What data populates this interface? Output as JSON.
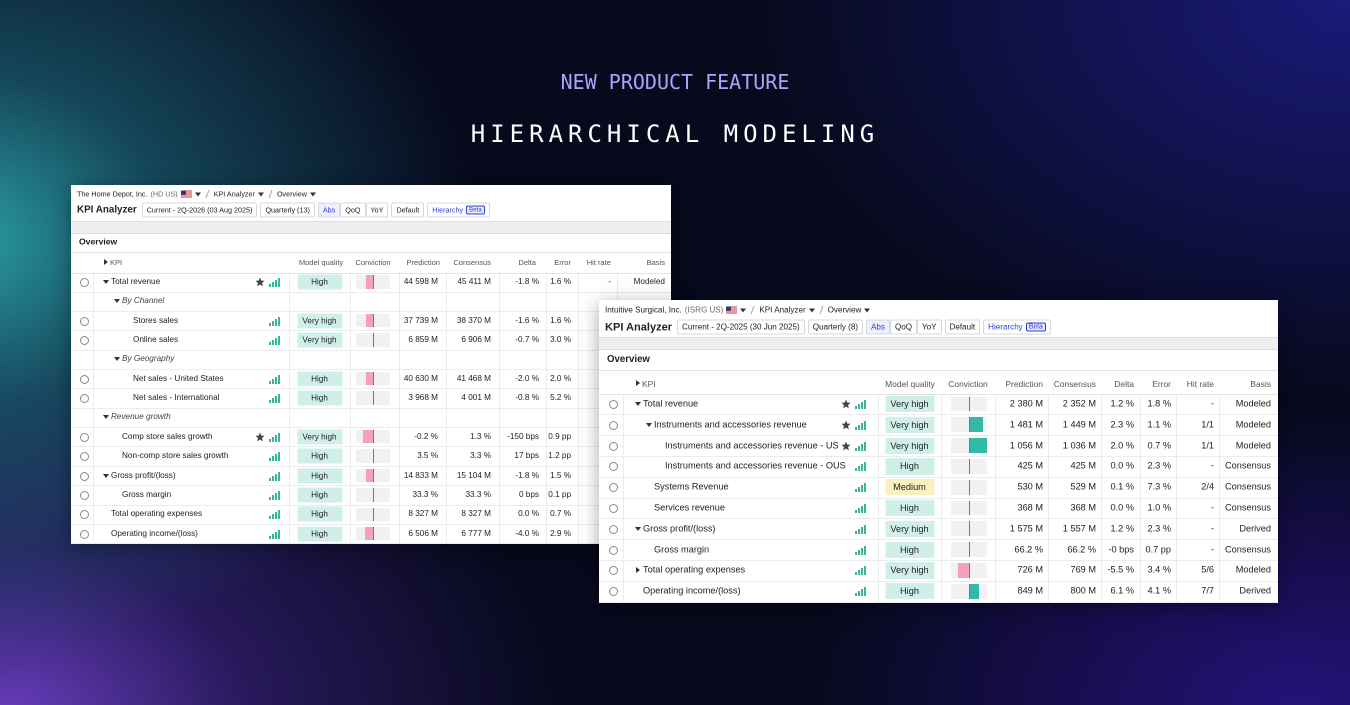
{
  "header": {
    "eyebrow": "NEW PRODUCT FEATURE",
    "title": "HIERARCHICAL MODELING"
  },
  "panels": [
    {
      "toolbar": {
        "company": "The Home Depot, Inc.",
        "ticker": "(HD US)",
        "view": "KPI Analyzer",
        "page": "Overview",
        "title": "KPI Analyzer",
        "period": "Current - 2Q-2026 (03 Aug 2025)",
        "frequency": "Quarterly (13)",
        "modes": [
          "Abs",
          "QoQ",
          "YoY"
        ],
        "active_mode": 0,
        "buttons": [
          "Default",
          "Hierarchy"
        ],
        "active_button": 1,
        "badge": "Beta"
      },
      "section": "Overview",
      "columns": [
        "KPI",
        "Model quality",
        "Conviction",
        "Prediction",
        "Consensus",
        "Delta",
        "Error",
        "Hit rate",
        "Basis"
      ],
      "rows": [
        {
          "label": "Total revenue",
          "star": true,
          "quality": "High",
          "conviction": -0.4,
          "prediction": "44 598 M",
          "consensus": "45 411 M",
          "delta": "-1.8 %",
          "error": "1.6 %",
          "hit_rate": "-",
          "basis": "Modeled",
          "children": [
            {
              "label": "By Channel",
              "group": true,
              "children": [
                {
                  "label": "Stores sales",
                  "quality": "Very high",
                  "conviction": -0.4,
                  "prediction": "37 739 M",
                  "consensus": "38 370 M",
                  "delta": "-1.6 %",
                  "error": "1.6 %"
                },
                {
                  "label": "Online sales",
                  "quality": "Very high",
                  "conviction": 0,
                  "prediction": "6 859 M",
                  "consensus": "6 906 M",
                  "delta": "-0.7 %",
                  "error": "3.0 %"
                }
              ]
            },
            {
              "label": "By Geography",
              "group": true,
              "children": [
                {
                  "label": "Net sales - United States",
                  "quality": "High",
                  "conviction": -0.4,
                  "prediction": "40 630 M",
                  "consensus": "41 468 M",
                  "delta": "-2.0 %",
                  "error": "2.0 %"
                },
                {
                  "label": "Net sales - International",
                  "quality": "High",
                  "conviction": 0,
                  "prediction": "3 968 M",
                  "consensus": "4 001 M",
                  "delta": "-0.8 %",
                  "error": "5.2 %"
                }
              ]
            }
          ]
        },
        {
          "label": "Revenue growth",
          "group": true,
          "children": [
            {
              "label": "Comp store sales growth",
              "star": true,
              "quality": "Very high",
              "conviction": -0.6,
              "prediction": "-0.2 %",
              "consensus": "1.3 %",
              "delta": "-150 bps",
              "error": "0.9 pp"
            },
            {
              "label": "Non-comp store sales growth",
              "quality": "High",
              "conviction": 0,
              "prediction": "3.5 %",
              "consensus": "3.3 %",
              "delta": "17 bps",
              "error": "1.2 pp"
            }
          ]
        },
        {
          "label": "Gross profit/(loss)",
          "quality": "High",
          "conviction": -0.4,
          "prediction": "14 833 M",
          "consensus": "15 104 M",
          "delta": "-1.8 %",
          "error": "1.5 %",
          "children": [
            {
              "label": "Gross margin",
              "quality": "High",
              "conviction": 0,
              "prediction": "33.3 %",
              "consensus": "33.3 %",
              "delta": "0 bps",
              "error": "0.1 pp"
            }
          ]
        },
        {
          "label": "Total operating expenses",
          "quality": "High",
          "conviction": 0,
          "prediction": "8 327 M",
          "consensus": "8 327 M",
          "delta": "0.0 %",
          "error": "0.7 %"
        },
        {
          "label": "Operating income/(loss)",
          "quality": "High",
          "conviction": -0.5,
          "prediction": "6 506 M",
          "consensus": "6 777 M",
          "delta": "-4.0 %",
          "error": "2.9 %"
        }
      ]
    },
    {
      "toolbar": {
        "company": "Intuitive Surgical, Inc.",
        "ticker": "(ISRG US)",
        "view": "KPI Analyzer",
        "page": "Overview",
        "title": "KPI Analyzer",
        "period": "Current - 2Q-2025 (30 Jun 2025)",
        "frequency": "Quarterly (8)",
        "modes": [
          "Abs",
          "QoQ",
          "YoY"
        ],
        "active_mode": 0,
        "buttons": [
          "Default",
          "Hierarchy"
        ],
        "active_button": 1,
        "badge": "Beta"
      },
      "section": "Overview",
      "columns": [
        "KPI",
        "Model quality",
        "Conviction",
        "Prediction",
        "Consensus",
        "Delta",
        "Error",
        "Hit rate",
        "Basis"
      ],
      "rows": [
        {
          "label": "Total revenue",
          "star": true,
          "quality": "Very high",
          "conviction": 0,
          "prediction": "2 380 M",
          "consensus": "2 352 M",
          "delta": "1.2 %",
          "error": "1.8 %",
          "hit_rate": "-",
          "basis": "Modeled",
          "children": [
            {
              "label": "Instruments and accessories revenue",
              "star": true,
              "quality": "Very high",
              "conviction": 0.8,
              "prediction": "1 481 M",
              "consensus": "1 449 M",
              "delta": "2.3 %",
              "error": "1.1 %",
              "hit_rate": "1/1",
              "basis": "Modeled",
              "children": [
                {
                  "label": "Instruments and accessories revenue - US",
                  "star": true,
                  "quality": "Very high",
                  "conviction": 1.0,
                  "prediction": "1 056 M",
                  "consensus": "1 036 M",
                  "delta": "2.0 %",
                  "error": "0.7 %",
                  "hit_rate": "1/1",
                  "basis": "Modeled"
                },
                {
                  "label": "Instruments and accessories revenue - OUS",
                  "quality": "High",
                  "conviction": 0,
                  "prediction": "425 M",
                  "consensus": "425 M",
                  "delta": "0.0 %",
                  "error": "2.3 %",
                  "hit_rate": "-",
                  "basis": "Consensus"
                }
              ]
            },
            {
              "label": "Systems Revenue",
              "quality": "Medium",
              "quality_color": "#fcefc2",
              "conviction": 0,
              "prediction": "530 M",
              "consensus": "529 M",
              "delta": "0.1 %",
              "error": "7.3 %",
              "hit_rate": "2/4",
              "basis": "Consensus"
            },
            {
              "label": "Services revenue",
              "quality": "High",
              "conviction": 0,
              "prediction": "368 M",
              "consensus": "368 M",
              "delta": "0.0 %",
              "error": "1.0 %",
              "hit_rate": "-",
              "basis": "Consensus"
            }
          ]
        },
        {
          "label": "Gross profit/(loss)",
          "quality": "Very high",
          "conviction": 0,
          "prediction": "1 575 M",
          "consensus": "1 557 M",
          "delta": "1.2 %",
          "error": "2.3 %",
          "hit_rate": "-",
          "basis": "Derived",
          "children": [
            {
              "label": "Gross margin",
              "quality": "High",
              "conviction": 0,
              "prediction": "66.2 %",
              "consensus": "66.2 %",
              "delta": "-0 bps",
              "error": "0.7 pp",
              "hit_rate": "-",
              "basis": "Consensus"
            }
          ]
        },
        {
          "label": "Total operating expenses",
          "expanded": false,
          "quality": "Very high",
          "conviction": -0.6,
          "prediction": "726 M",
          "consensus": "769 M",
          "delta": "-5.5 %",
          "error": "3.4 %",
          "hit_rate": "5/6",
          "basis": "Modeled"
        },
        {
          "label": "Operating income/(loss)",
          "quality": "High",
          "conviction": 0.55,
          "prediction": "849 M",
          "consensus": "800 M",
          "delta": "6.1 %",
          "error": "4.1 %",
          "hit_rate": "7/7",
          "basis": "Derived"
        }
      ]
    }
  ]
}
